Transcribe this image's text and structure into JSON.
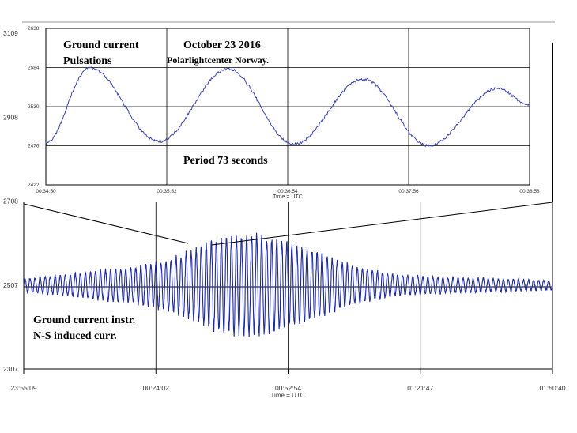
{
  "chart_data": [
    {
      "type": "line",
      "name_role": "main",
      "xlabel": "Time = UTC",
      "x_ticks": [
        "23:55:09",
        "00:24:02",
        "00:52:54",
        "01:21:47",
        "01:50:40"
      ],
      "y_ticks": [
        "3109",
        "2908",
        "2708",
        "2507",
        "2307"
      ],
      "ylim": [
        2307,
        3109
      ],
      "baseline": 2507,
      "grid": true,
      "annotations": [
        "Ground current instr.",
        "N-S induced curr."
      ],
      "series": [
        {
          "color": "#1f2a9e",
          "envelope": {
            "x": [
              0,
              0.08,
              0.15,
              0.2,
              0.26,
              0.3,
              0.36,
              0.42,
              0.46,
              0.5,
              0.56,
              0.62,
              0.7,
              0.8,
              0.9,
              1.0
            ],
            "amplitude": [
              15,
              25,
              35,
              40,
              55,
              70,
              105,
              118,
              112,
              98,
              75,
              45,
              25,
              18,
              15,
              10
            ]
          }
        }
      ]
    },
    {
      "type": "line",
      "name_role": "inset",
      "xlabel": "Time = UTC",
      "x_ticks": [
        "00:34:50",
        "00:35:52",
        "00:36:54",
        "00:37:56",
        "00:38:58"
      ],
      "y_ticks": [
        "2638",
        "2584",
        "2530",
        "2476",
        "2422"
      ],
      "ylim": [
        2422,
        2638
      ],
      "grid": true,
      "annotations": [
        "Ground current",
        "Pulsations",
        "October 23 2016",
        "Polarlightcenter Norway.",
        "Period 73 seconds"
      ],
      "series": [
        {
          "color": "#3a44b0",
          "maxima": [
            [
              0.22,
              2584
            ],
            [
              0.92,
              2582
            ],
            [
              1.6,
              2568
            ],
            [
              2.28,
              2555
            ]
          ],
          "minima": [
            [
              0.57,
              2482
            ],
            [
              1.25,
              2478
            ],
            [
              1.93,
              2476
            ]
          ],
          "start": [
            0,
            2480
          ],
          "end": [
            2.44,
            2532
          ]
        }
      ]
    }
  ]
}
